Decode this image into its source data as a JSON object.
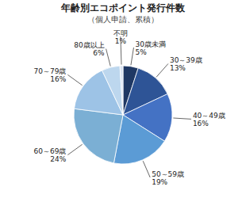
{
  "chart_data": {
    "type": "pie",
    "title": "年齢別エコポイント発行件数",
    "subtitle": "（個人申請、累積）",
    "categories": [
      "30歳未満",
      "30～39歳",
      "40～49歳",
      "50～59歳",
      "60～69歳",
      "70～79歳",
      "80歳以上",
      "不明"
    ],
    "values": [
      5,
      13,
      16,
      19,
      24,
      16,
      6,
      1
    ],
    "value_labels": [
      "5%",
      "13%",
      "16%",
      "19%",
      "24%",
      "16%",
      "6%",
      "1%"
    ],
    "data_labels": true,
    "colors": [
      "#1f3864",
      "#2e5496",
      "#4472c4",
      "#5b9bd5",
      "#7bafd4",
      "#9dc3e6",
      "#bdd7ee",
      "#dae3f3"
    ]
  }
}
